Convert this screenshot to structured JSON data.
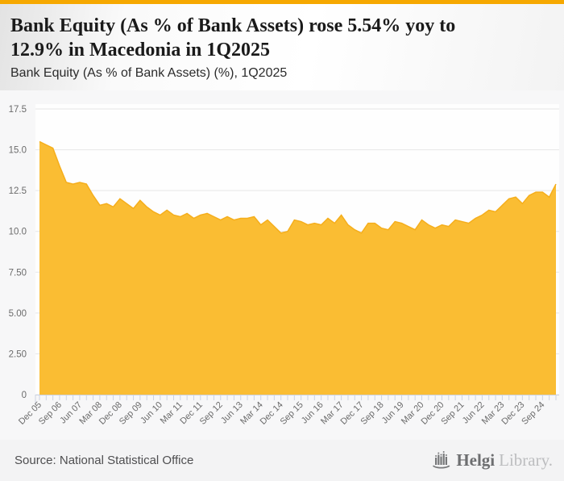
{
  "header": {
    "title": "Bank Equity (As % of Bank Assets) rose 5.54% yoy to 12.9% in Macedonia in 1Q2025",
    "subtitle": "Bank Equity (As % of Bank Assets) (%), 1Q2025"
  },
  "footer": {
    "source": "Source: National Statistical Office",
    "logo_primary": "Helgi",
    "logo_secondary": "Library."
  },
  "theme": {
    "accent_bar": "#F6A800",
    "area_fill": "#FABD33",
    "area_line": "#F5AE1C",
    "plot_bg": "#fefefe",
    "grid": "#e6e6e6",
    "axis": "#ccd3e2",
    "label": "#6b6b6b"
  },
  "chart_data": {
    "type": "area",
    "title": "Bank Equity (As % of Bank Assets) rose 5.54% yoy to 12.9% in Macedonia in 1Q2025",
    "subtitle": "Bank Equity (As % of Bank Assets) (%), 1Q2025",
    "ylim": [
      0,
      17.5
    ],
    "grid": true,
    "legend": "none",
    "y_tick_labels": [
      "0",
      "2.50",
      "5.00",
      "7.50",
      "10.0",
      "12.5",
      "15.0",
      "17.5"
    ],
    "x_tick_labels": [
      "Dec 05",
      "Sep 06",
      "Jun 07",
      "Mar 08",
      "Dec 08",
      "Sep 09",
      "Jun 10",
      "Mar 11",
      "Dec 11",
      "Sep 12",
      "Jun 13",
      "Mar 14",
      "Dec 14",
      "Sep 15",
      "Jun 16",
      "Mar 17",
      "Dec 17",
      "Sep 18",
      "Jun 19",
      "Mar 20",
      "Dec 20",
      "Sep 21",
      "Jun 22",
      "Mar 23",
      "Dec 23",
      "Sep 24"
    ],
    "x_tick_every": 3,
    "x": [
      "4Q05",
      "1Q06",
      "2Q06",
      "3Q06",
      "4Q06",
      "1Q07",
      "2Q07",
      "3Q07",
      "4Q07",
      "1Q08",
      "2Q08",
      "3Q08",
      "4Q08",
      "1Q09",
      "2Q09",
      "3Q09",
      "4Q09",
      "1Q10",
      "2Q10",
      "3Q10",
      "4Q10",
      "1Q11",
      "2Q11",
      "3Q11",
      "4Q11",
      "1Q12",
      "2Q12",
      "3Q12",
      "4Q12",
      "1Q13",
      "2Q13",
      "3Q13",
      "4Q13",
      "1Q14",
      "2Q14",
      "3Q14",
      "4Q14",
      "1Q15",
      "2Q15",
      "3Q15",
      "4Q15",
      "1Q16",
      "2Q16",
      "3Q16",
      "4Q16",
      "1Q17",
      "2Q17",
      "3Q17",
      "4Q17",
      "1Q18",
      "2Q18",
      "3Q18",
      "4Q18",
      "1Q19",
      "2Q19",
      "3Q19",
      "4Q19",
      "1Q20",
      "2Q20",
      "3Q20",
      "4Q20",
      "1Q21",
      "2Q21",
      "3Q21",
      "4Q21",
      "1Q22",
      "2Q22",
      "3Q22",
      "4Q22",
      "1Q23",
      "2Q23",
      "3Q23",
      "4Q23",
      "1Q24",
      "2Q24",
      "3Q24",
      "4Q24",
      "1Q25"
    ],
    "series": [
      {
        "name": "Bank Equity (As % of Bank Assets) (%)",
        "color": "#FABD33",
        "values": [
          15.5,
          15.3,
          15.1,
          14.0,
          13.0,
          12.9,
          13.0,
          12.9,
          12.2,
          11.6,
          11.7,
          11.5,
          12.0,
          11.7,
          11.4,
          11.9,
          11.5,
          11.2,
          11.0,
          11.3,
          11.0,
          10.9,
          11.1,
          10.8,
          11.0,
          11.1,
          10.9,
          10.7,
          10.9,
          10.7,
          10.8,
          10.8,
          10.9,
          10.4,
          10.7,
          10.3,
          9.9,
          10.0,
          10.7,
          10.6,
          10.4,
          10.5,
          10.4,
          10.8,
          10.5,
          11.0,
          10.4,
          10.1,
          9.9,
          10.5,
          10.5,
          10.2,
          10.1,
          10.6,
          10.5,
          10.3,
          10.1,
          10.7,
          10.4,
          10.2,
          10.4,
          10.3,
          10.7,
          10.6,
          10.5,
          10.8,
          11.0,
          11.3,
          11.2,
          11.6,
          12.0,
          12.1,
          11.7,
          12.2,
          12.4,
          12.4,
          12.1,
          12.9
        ]
      }
    ]
  }
}
